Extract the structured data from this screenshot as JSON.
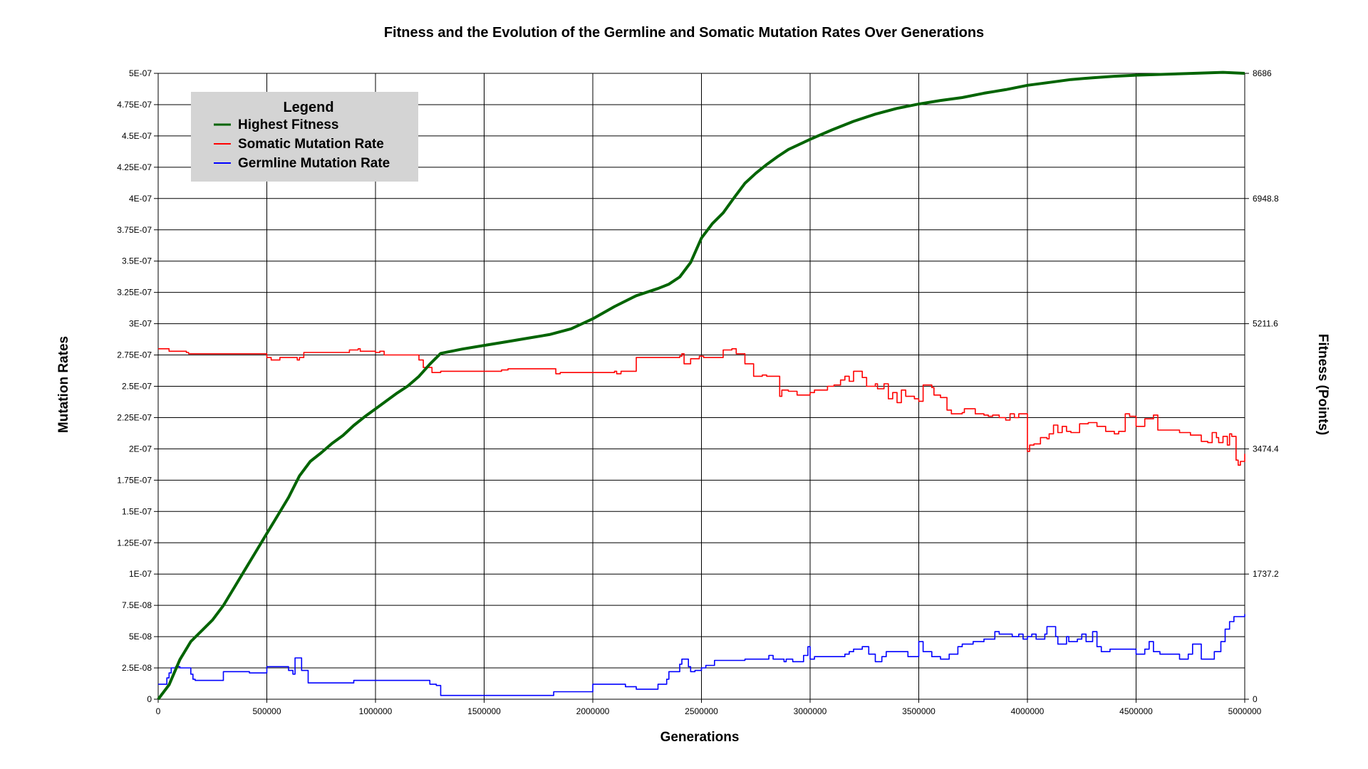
{
  "chart_data": {
    "type": "line",
    "title": "Fitness and the Evolution of the Germline and Somatic Mutation Rates Over Generations",
    "xlabel": "Generations",
    "ylabel": "Mutation Rates",
    "y2label": "Fitness (Points)",
    "xlim": [
      0,
      5000000
    ],
    "ylim": [
      0,
      5e-07
    ],
    "y2lim": [
      0,
      8686
    ],
    "x_ticks": [
      0,
      500000,
      1000000,
      1500000,
      2000000,
      2500000,
      3000000,
      3500000,
      4000000,
      4500000,
      5000000
    ],
    "x_tick_labels": [
      "0",
      "500000",
      "1000000",
      "1500000",
      "2000000",
      "2500000",
      "3000000",
      "3500000",
      "4000000",
      "4500000",
      "5000000"
    ],
    "y_ticks": [
      0,
      2.5e-08,
      5e-08,
      7.5e-08,
      1e-07,
      1.25e-07,
      1.5e-07,
      1.75e-07,
      2e-07,
      2.25e-07,
      2.5e-07,
      2.75e-07,
      3e-07,
      3.25e-07,
      3.5e-07,
      3.75e-07,
      4e-07,
      4.25e-07,
      4.5e-07,
      4.75e-07,
      5e-07
    ],
    "y_tick_labels": [
      "0",
      "2.5E-08",
      "5E-08",
      "7.5E-08",
      "1E-07",
      "1.25E-07",
      "1.5E-07",
      "1.75E-07",
      "2E-07",
      "2.25E-07",
      "2.5E-07",
      "2.75E-07",
      "3E-07",
      "3.25E-07",
      "3.5E-07",
      "3.75E-07",
      "4E-07",
      "4.25E-07",
      "4.5E-07",
      "4.75E-07",
      "5E-07"
    ],
    "y2_ticks": [
      0,
      1737.2,
      3474.4,
      5211.6,
      6948.8,
      8686
    ],
    "y2_tick_labels": [
      "0",
      "1737.2",
      "3474.4",
      "5211.6",
      "6948.8",
      "8686"
    ],
    "grid": true,
    "legend": {
      "title": "Legend",
      "placement": "top-left"
    },
    "series": [
      {
        "name": "Highest Fitness",
        "axis": "right",
        "color": "#006400",
        "step": false,
        "x": [
          0,
          50000,
          100000,
          150000,
          200000,
          250000,
          300000,
          350000,
          400000,
          450000,
          500000,
          550000,
          600000,
          650000,
          700000,
          750000,
          800000,
          850000,
          900000,
          950000,
          1000000,
          1050000,
          1100000,
          1150000,
          1200000,
          1250000,
          1300000,
          1400000,
          1500000,
          1600000,
          1700000,
          1800000,
          1900000,
          2000000,
          2100000,
          2200000,
          2300000,
          2350000,
          2400000,
          2450000,
          2500000,
          2550000,
          2600000,
          2650000,
          2700000,
          2750000,
          2800000,
          2850000,
          2900000,
          2950000,
          3000000,
          3100000,
          3200000,
          3300000,
          3400000,
          3500000,
          3600000,
          3700000,
          3800000,
          3900000,
          4000000,
          4100000,
          4200000,
          4300000,
          4400000,
          4500000,
          4600000,
          4700000,
          4800000,
          4900000,
          5000000
        ],
        "values": [
          0,
          200,
          550,
          800,
          950,
          1100,
          1300,
          1550,
          1800,
          2050,
          2300,
          2550,
          2800,
          3100,
          3300,
          3420,
          3550,
          3660,
          3800,
          3920,
          4030,
          4140,
          4250,
          4350,
          4480,
          4650,
          4800,
          4860,
          4910,
          4960,
          5010,
          5060,
          5140,
          5280,
          5450,
          5600,
          5700,
          5760,
          5860,
          6060,
          6400,
          6600,
          6750,
          6960,
          7160,
          7300,
          7420,
          7530,
          7630,
          7700,
          7770,
          7900,
          8020,
          8120,
          8200,
          8260,
          8310,
          8350,
          8410,
          8460,
          8520,
          8560,
          8600,
          8625,
          8645,
          8660,
          8670,
          8680,
          8690,
          8700,
          8686
        ]
      },
      {
        "name": "Somatic Mutation Rate",
        "axis": "left",
        "color": "#ff0000",
        "step": true,
        "x": [
          0,
          50000,
          130000,
          140000,
          500000,
          520000,
          560000,
          640000,
          650000,
          670000,
          690000,
          880000,
          920000,
          930000,
          1000000,
          1020000,
          1040000,
          1200000,
          1220000,
          1260000,
          1300000,
          1500000,
          1580000,
          1610000,
          1700000,
          1830000,
          1850000,
          2100000,
          2110000,
          2130000,
          2200000,
          2400000,
          2410000,
          2420000,
          2450000,
          2490000,
          2510000,
          2600000,
          2640000,
          2660000,
          2700000,
          2740000,
          2780000,
          2800000,
          2850000,
          2860000,
          2870000,
          2900000,
          2940000,
          3000000,
          3020000,
          3080000,
          3110000,
          3140000,
          3160000,
          3180000,
          3200000,
          3240000,
          3260000,
          3300000,
          3310000,
          3340000,
          3360000,
          3380000,
          3400000,
          3420000,
          3440000,
          3480000,
          3500000,
          3520000,
          3560000,
          3570000,
          3600000,
          3630000,
          3650000,
          3700000,
          3710000,
          3760000,
          3800000,
          3820000,
          3840000,
          3870000,
          3900000,
          3920000,
          3940000,
          3960000,
          4000000,
          4010000,
          4030000,
          4060000,
          4090000,
          4100000,
          4120000,
          4140000,
          4160000,
          4180000,
          4200000,
          4240000,
          4280000,
          4300000,
          4320000,
          4360000,
          4400000,
          4420000,
          4450000,
          4470000,
          4500000,
          4540000,
          4580000,
          4600000,
          4640000,
          4700000,
          4750000,
          4800000,
          4830000,
          4850000,
          4870000,
          4880000,
          4900000,
          4920000,
          4930000,
          4940000,
          4960000,
          4970000,
          4980000,
          5000000
        ],
        "values": [
          2.8e-07,
          2.78e-07,
          2.77e-07,
          2.76e-07,
          2.73e-07,
          2.71e-07,
          2.73e-07,
          2.71e-07,
          2.73e-07,
          2.77e-07,
          2.77e-07,
          2.79e-07,
          2.8e-07,
          2.78e-07,
          2.77e-07,
          2.78e-07,
          2.75e-07,
          2.71e-07,
          2.65e-07,
          2.61e-07,
          2.62e-07,
          2.62e-07,
          2.63e-07,
          2.64e-07,
          2.64e-07,
          2.6e-07,
          2.61e-07,
          2.62e-07,
          2.6e-07,
          2.62e-07,
          2.73e-07,
          2.74e-07,
          2.76e-07,
          2.68e-07,
          2.72e-07,
          2.74e-07,
          2.73e-07,
          2.79e-07,
          2.8e-07,
          2.76e-07,
          2.68e-07,
          2.58e-07,
          2.59e-07,
          2.58e-07,
          2.58e-07,
          2.42e-07,
          2.47e-07,
          2.46e-07,
          2.43e-07,
          2.45e-07,
          2.47e-07,
          2.5e-07,
          2.51e-07,
          2.55e-07,
          2.58e-07,
          2.54e-07,
          2.62e-07,
          2.57e-07,
          2.5e-07,
          2.52e-07,
          2.48e-07,
          2.52e-07,
          2.4e-07,
          2.45e-07,
          2.37e-07,
          2.47e-07,
          2.42e-07,
          2.4e-07,
          2.38e-07,
          2.51e-07,
          2.49e-07,
          2.43e-07,
          2.41e-07,
          2.31e-07,
          2.28e-07,
          2.29e-07,
          2.32e-07,
          2.28e-07,
          2.27e-07,
          2.26e-07,
          2.27e-07,
          2.25e-07,
          2.23e-07,
          2.28e-07,
          2.25e-07,
          2.28e-07,
          1.98e-07,
          2.03e-07,
          2.04e-07,
          2.09e-07,
          2.08e-07,
          2.12e-07,
          2.19e-07,
          2.13e-07,
          2.18e-07,
          2.14e-07,
          2.13e-07,
          2.2e-07,
          2.21e-07,
          2.21e-07,
          2.18e-07,
          2.14e-07,
          2.12e-07,
          2.14e-07,
          2.28e-07,
          2.26e-07,
          2.18e-07,
          2.24e-07,
          2.27e-07,
          2.15e-07,
          2.15e-07,
          2.13e-07,
          2.11e-07,
          2.06e-07,
          2.05e-07,
          2.13e-07,
          2.09e-07,
          2.05e-07,
          2.1e-07,
          2.03e-07,
          2.12e-07,
          2.1e-07,
          1.91e-07,
          1.87e-07,
          1.9e-07,
          1.96e-07
        ]
      },
      {
        "name": "Germline Mutation Rate",
        "axis": "left",
        "color": "#0000ff",
        "step": true,
        "x": [
          0,
          40000,
          50000,
          60000,
          80000,
          100000,
          150000,
          160000,
          170000,
          300000,
          420000,
          500000,
          600000,
          620000,
          630000,
          660000,
          690000,
          900000,
          1250000,
          1280000,
          1300000,
          1400000,
          1600000,
          1800000,
          1820000,
          1950000,
          2000000,
          2100000,
          2150000,
          2200000,
          2300000,
          2340000,
          2350000,
          2400000,
          2410000,
          2440000,
          2450000,
          2470000,
          2500000,
          2520000,
          2560000,
          2700000,
          2810000,
          2830000,
          2880000,
          2890000,
          2920000,
          2970000,
          2990000,
          3000000,
          3020000,
          3160000,
          3180000,
          3200000,
          3240000,
          3270000,
          3300000,
          3330000,
          3350000,
          3450000,
          3500000,
          3520000,
          3560000,
          3600000,
          3640000,
          3680000,
          3700000,
          3750000,
          3800000,
          3850000,
          3870000,
          3930000,
          3960000,
          3980000,
          4000000,
          4020000,
          4040000,
          4080000,
          4090000,
          4130000,
          4140000,
          4180000,
          4190000,
          4230000,
          4250000,
          4270000,
          4300000,
          4320000,
          4340000,
          4380000,
          4400000,
          4460000,
          4500000,
          4540000,
          4560000,
          4580000,
          4610000,
          4650000,
          4700000,
          4740000,
          4760000,
          4800000,
          4860000,
          4890000,
          4910000,
          4930000,
          4950000,
          5000000
        ],
        "values": [
          1.2e-08,
          1.7e-08,
          2.1e-08,
          2.5e-08,
          2.6e-08,
          2.5e-08,
          2e-08,
          1.6e-08,
          1.5e-08,
          2.2e-08,
          2.1e-08,
          2.6e-08,
          2.3e-08,
          2e-08,
          3.3e-08,
          2.3e-08,
          1.3e-08,
          1.5e-08,
          1.2e-08,
          1.1e-08,
          3e-09,
          3e-09,
          3e-09,
          3e-09,
          6e-09,
          6e-09,
          1.2e-08,
          1.2e-08,
          1e-08,
          8e-09,
          1.2e-08,
          1.6e-08,
          2.2e-08,
          2.8e-08,
          3.2e-08,
          2.6e-08,
          2.2e-08,
          2.3e-08,
          2.5e-08,
          2.7e-08,
          3.1e-08,
          3.2e-08,
          3.5e-08,
          3.2e-08,
          3e-08,
          3.2e-08,
          3e-08,
          3.5e-08,
          4.2e-08,
          3.2e-08,
          3.4e-08,
          3.6e-08,
          3.8e-08,
          4e-08,
          4.2e-08,
          3.6e-08,
          3e-08,
          3.4e-08,
          3.8e-08,
          3.4e-08,
          4.6e-08,
          3.8e-08,
          3.4e-08,
          3.2e-08,
          3.6e-08,
          4.2e-08,
          4.4e-08,
          4.6e-08,
          4.8e-08,
          5.4e-08,
          5.2e-08,
          5e-08,
          5.2e-08,
          4.8e-08,
          5e-08,
          5.2e-08,
          4.8e-08,
          5.2e-08,
          5.8e-08,
          5e-08,
          4.4e-08,
          5e-08,
          4.6e-08,
          4.8e-08,
          5.2e-08,
          4.6e-08,
          5.4e-08,
          4.2e-08,
          3.8e-08,
          4e-08,
          4e-08,
          4e-08,
          3.6e-08,
          4e-08,
          4.6e-08,
          3.8e-08,
          3.6e-08,
          3.6e-08,
          3.2e-08,
          3.6e-08,
          4.4e-08,
          3.2e-08,
          3.8e-08,
          4.6e-08,
          5.6e-08,
          6.2e-08,
          6.6e-08,
          6.8e-08
        ]
      }
    ]
  }
}
